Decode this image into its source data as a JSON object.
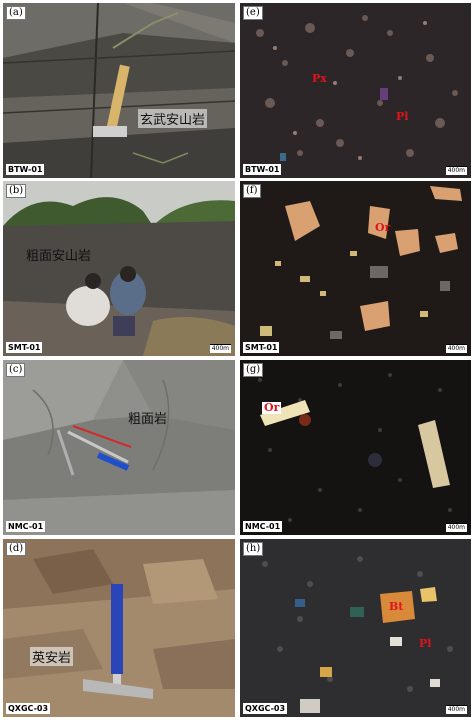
{
  "panels": {
    "a": {
      "letter": "(a)",
      "sample": "BTW-01",
      "rock_name": "玄武安山岩"
    },
    "b": {
      "letter": "(b)",
      "sample": "SMT-01",
      "rock_name": "粗面安山岩",
      "scale": "400m"
    },
    "c": {
      "letter": "(c)",
      "sample": "NMC-01",
      "rock_name": "粗面岩"
    },
    "d": {
      "letter": "(d)",
      "sample": "QXGC-03",
      "rock_name": "英安岩"
    },
    "e": {
      "letter": "(e)",
      "sample": "BTW-01",
      "minerals": [
        "Px",
        "Pl"
      ],
      "scale": "400m"
    },
    "f": {
      "letter": "(f)",
      "sample": "SMT-01",
      "minerals": [
        "Or"
      ],
      "scale": "400m"
    },
    "g": {
      "letter": "(g)",
      "sample": "NMC-01",
      "minerals": [
        "Or"
      ],
      "scale": "400m"
    },
    "h": {
      "letter": "(h)",
      "sample": "QXGC-03",
      "minerals": [
        "Bt",
        "Pl"
      ],
      "scale": "400m"
    }
  }
}
